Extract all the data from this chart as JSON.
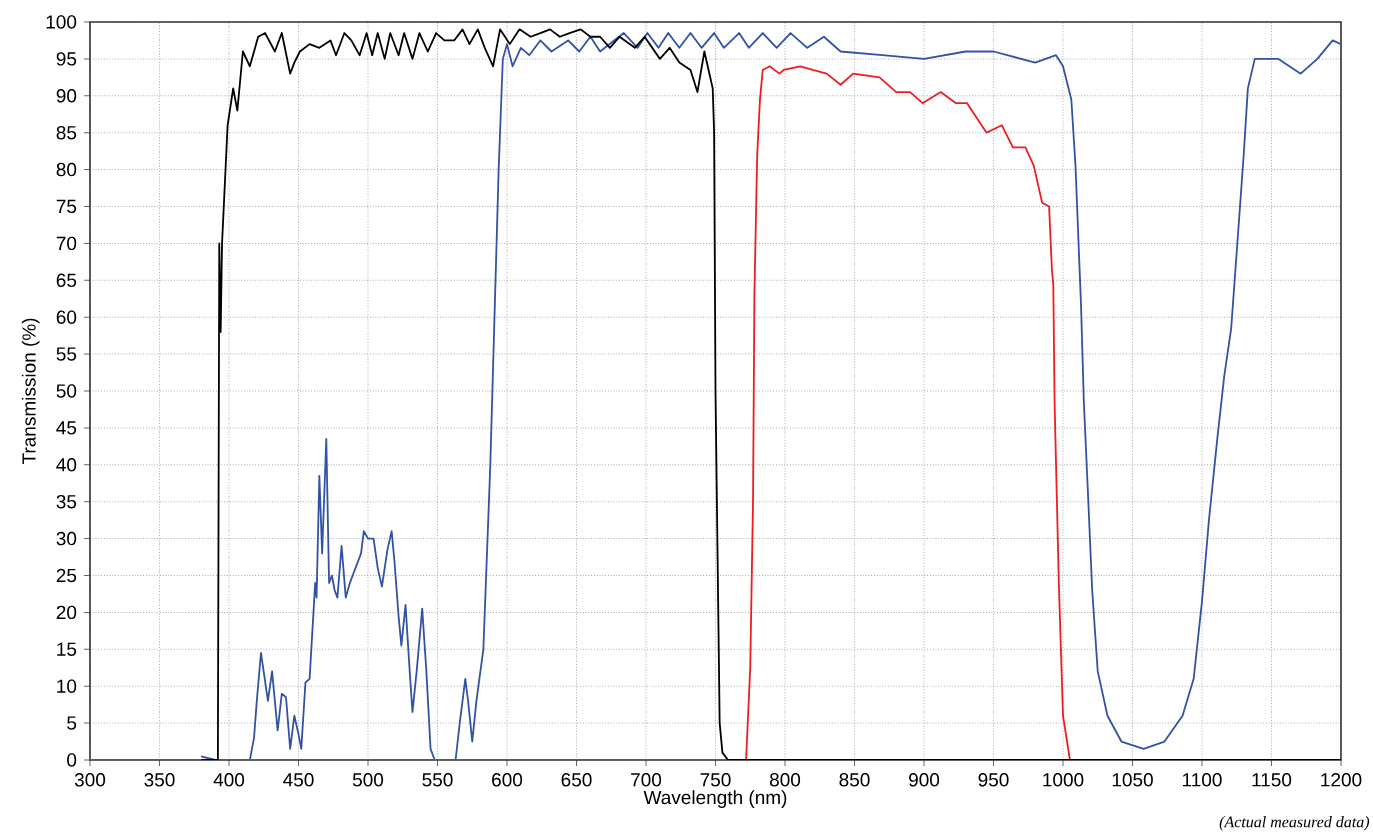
{
  "chart_data": {
    "type": "line",
    "xlabel": "Wavelength (nm)",
    "ylabel": "Transmission (%)",
    "xlim": [
      300,
      1200
    ],
    "ylim": [
      0,
      100
    ],
    "xticks": [
      300,
      350,
      400,
      450,
      500,
      550,
      600,
      650,
      700,
      750,
      800,
      850,
      900,
      950,
      1000,
      1050,
      1100,
      1150,
      1200
    ],
    "yticks": [
      0,
      5,
      10,
      15,
      20,
      25,
      30,
      35,
      40,
      45,
      50,
      55,
      60,
      65,
      70,
      75,
      80,
      85,
      90,
      95,
      100
    ],
    "grid": true,
    "line_style": "solid",
    "marker": "none",
    "annotations": [
      "(Actual measured data)"
    ],
    "series": [
      {
        "color": "#3352a3",
        "x": [
          380,
          390,
          400,
          415,
          418,
          420,
          423,
          428,
          431,
          435,
          438,
          441,
          444,
          447,
          450,
          452,
          455,
          458,
          462,
          463,
          465,
          467,
          470,
          472,
          474,
          476,
          478,
          481,
          484,
          487,
          490,
          495,
          497,
          500,
          504,
          507,
          510,
          514,
          517,
          519,
          522,
          524,
          527,
          530,
          532,
          535,
          539,
          542,
          545,
          548,
          563,
          566,
          570,
          572,
          575,
          578,
          583,
          588,
          591,
          594,
          597,
          600,
          604,
          610,
          616,
          624,
          632,
          644,
          652,
          660,
          667,
          684,
          694,
          701,
          709,
          716,
          724,
          732,
          740,
          749,
          756,
          767,
          774,
          784,
          794,
          804,
          816,
          828,
          840,
          870,
          900,
          930,
          950,
          980,
          995,
          1000,
          1006,
          1009,
          1013,
          1015,
          1018,
          1021,
          1025,
          1032,
          1042,
          1058,
          1073,
          1086,
          1094,
          1100,
          1105,
          1111,
          1116,
          1121,
          1126,
          1130,
          1133,
          1138,
          1148,
          1155,
          1171,
          1183,
          1194,
          1200
        ],
        "values": [
          0.5,
          0,
          0,
          0,
          3,
          8,
          14.5,
          8,
          12,
          4,
          9,
          8.5,
          1.5,
          6,
          3.5,
          1.5,
          10.5,
          11,
          24,
          22,
          38.5,
          28,
          43.5,
          24,
          25,
          23,
          22,
          29,
          22,
          24,
          25.5,
          28,
          31,
          30,
          30,
          26,
          23.5,
          28.5,
          31,
          27,
          19.5,
          15.5,
          21,
          12,
          6.5,
          12,
          20.5,
          12,
          1.5,
          0,
          0,
          5,
          11,
          8,
          2.5,
          8,
          15,
          40,
          60,
          80,
          95,
          97,
          94,
          96.5,
          95.5,
          97.5,
          96,
          97.5,
          96,
          98,
          96,
          98.5,
          96.5,
          98.5,
          96.5,
          98.5,
          96.5,
          98.5,
          96.5,
          98.5,
          96.5,
          98.5,
          96.5,
          98.5,
          96.5,
          98.5,
          96.5,
          98,
          96,
          95.5,
          95,
          96,
          96,
          94.5,
          95.5,
          94,
          89.5,
          80.5,
          61.5,
          48.5,
          36,
          23,
          12,
          6,
          2.5,
          1.5,
          2.5,
          6,
          11,
          21.5,
          32.5,
          43.5,
          52,
          58.5,
          71.5,
          82,
          91,
          95,
          95,
          95,
          93,
          95,
          97.5,
          97
        ]
      },
      {
        "color": "#ee1d23",
        "x": [
          300,
          772,
          775,
          777,
          778,
          780,
          782,
          784,
          789,
          796,
          799,
          811,
          820,
          830,
          840,
          849,
          868,
          880,
          890,
          899,
          912,
          923,
          931,
          945,
          956,
          964,
          973,
          979,
          985,
          990,
          992,
          993,
          994,
          997,
          1000,
          1005,
          1200
        ],
        "values": [
          0,
          0,
          12.5,
          35,
          63,
          82,
          89.5,
          93.5,
          94,
          93,
          93.5,
          94,
          93.5,
          93,
          91.5,
          93,
          92.5,
          90.5,
          90.5,
          89,
          90.5,
          89,
          89,
          85,
          86,
          83,
          83,
          80.5,
          75.5,
          75,
          66.5,
          64.5,
          48,
          24,
          6,
          0,
          0
        ]
      },
      {
        "color": "#000000",
        "x": [
          380,
          390,
          392,
          393,
          394,
          395,
          399,
          403,
          406,
          410,
          415,
          421,
          426,
          433,
          438,
          444,
          447,
          451,
          458,
          465,
          473,
          477,
          483,
          488,
          494,
          499,
          503,
          507,
          512,
          516,
          522,
          526,
          532,
          537,
          543,
          549,
          555,
          562,
          568,
          573,
          579,
          584,
          590,
          595,
          602,
          609,
          617,
          624,
          631,
          638,
          645,
          653,
          660,
          667,
          674,
          681,
          692,
          699,
          710,
          717,
          724,
          732,
          737,
          742,
          748,
          749,
          750,
          752,
          753,
          755,
          759,
          800,
          900,
          1000,
          1100,
          1200
        ],
        "values": [
          0,
          0,
          0,
          70,
          58,
          70,
          86,
          91,
          88,
          96,
          94,
          98,
          98.5,
          96,
          98.5,
          93,
          94.5,
          96,
          97,
          96.5,
          97.5,
          95.5,
          98.5,
          97.5,
          95.5,
          98.5,
          95.5,
          98.5,
          95,
          98.5,
          95.5,
          98.5,
          95,
          98.5,
          96,
          98.5,
          97.5,
          97.5,
          99,
          97,
          99,
          96.5,
          94,
          99,
          97,
          99,
          98,
          98.5,
          99,
          98,
          98.5,
          99,
          98,
          98,
          96.5,
          98,
          96.5,
          98,
          95,
          96.5,
          94.5,
          93.5,
          90.5,
          96,
          91,
          85,
          50,
          20,
          5,
          1,
          0,
          0,
          0,
          0,
          0,
          0
        ]
      }
    ]
  }
}
